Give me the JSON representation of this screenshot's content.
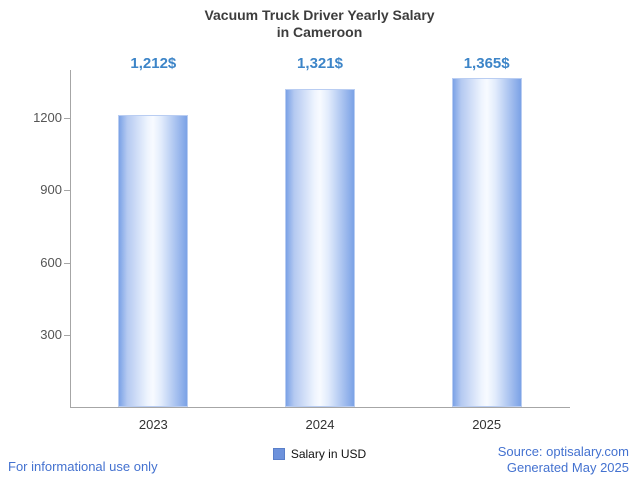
{
  "header": {
    "line1": "Vacuum Truck Driver Yearly Salary",
    "line2": "in Cameroon"
  },
  "chart_data": {
    "type": "bar",
    "title": "Vacuum Truck Driver Yearly Salary in Cameroon",
    "categories": [
      "2023",
      "2024",
      "2025"
    ],
    "values": [
      1212,
      1321,
      1365
    ],
    "value_labels": [
      "1,212$",
      "1,321$",
      "1,365$"
    ],
    "xlabel": "",
    "ylabel": "",
    "ylim": [
      0,
      1400
    ],
    "yticks": [
      300,
      600,
      900,
      1200
    ],
    "grid": false,
    "legend": [
      "Salary in USD"
    ],
    "legend_position": "bottom"
  },
  "legend": {
    "label": "Salary in USD"
  },
  "footer": {
    "left": "For informational use only",
    "source": "Source: optisalary.com",
    "generated": "Generated May 2025"
  },
  "colors": {
    "accent": "#3d85c8",
    "bar_edge": "#7ba2e6",
    "bar_center": "#f8fbff",
    "footer_link": "#4472d0",
    "axis": "#a6a6a6"
  }
}
